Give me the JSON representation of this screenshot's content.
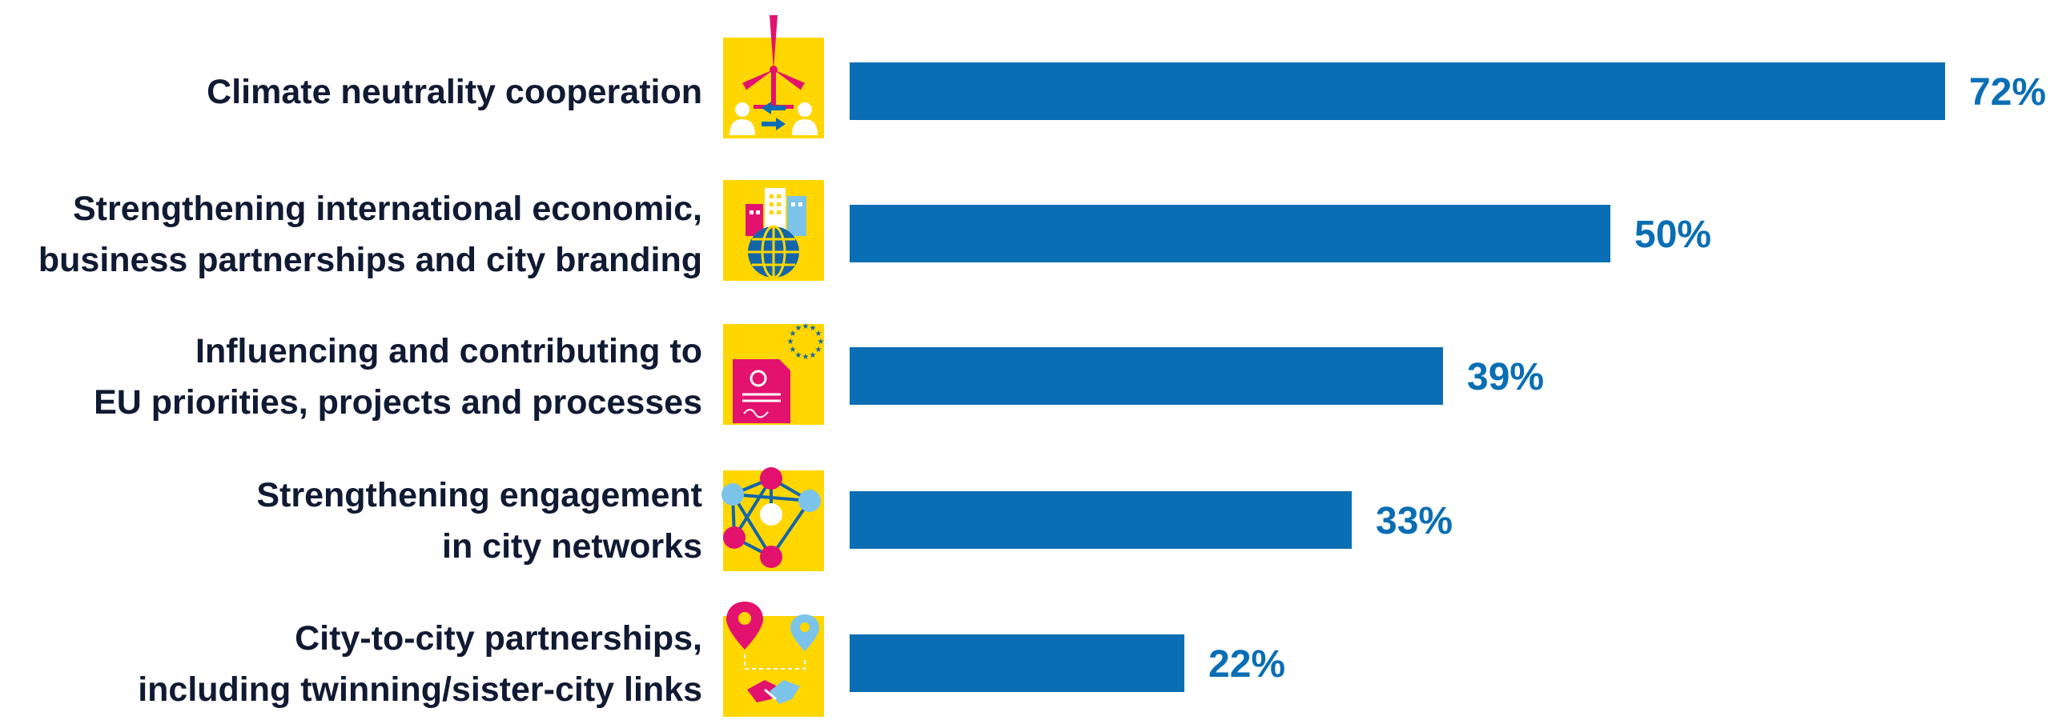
{
  "chart_data": {
    "type": "bar",
    "orientation": "horizontal",
    "categories": [
      [
        "Climate neutrality cooperation"
      ],
      [
        "Strengthening international economic,",
        "business partnerships and city branding"
      ],
      [
        "Influencing and contributing to",
        "EU priorities, projects and processes"
      ],
      [
        "Strengthening engagement",
        "in city networks"
      ],
      [
        "City-to-city partnerships,",
        "including twinning/sister-city links"
      ]
    ],
    "values": [
      72,
      50,
      39,
      33,
      22
    ],
    "value_labels": [
      "72%",
      "50%",
      "39%",
      "33%",
      "22%"
    ],
    "icons": [
      "wind-turbine-exchange-icon",
      "city-globe-icon",
      "eu-document-icon",
      "network-nodes-icon",
      "map-pins-handshake-icon"
    ],
    "xlim": [
      0,
      100
    ],
    "grid": false,
    "legend": "none"
  },
  "colors": {
    "bar": "#0a6eb4",
    "value_text": "#0a6eb4",
    "label_text": "#111a33",
    "icon_bg": "#ffd600",
    "magenta": "#e2126e",
    "light_blue": "#7cc3ea",
    "dark_blue": "#1465a8"
  }
}
